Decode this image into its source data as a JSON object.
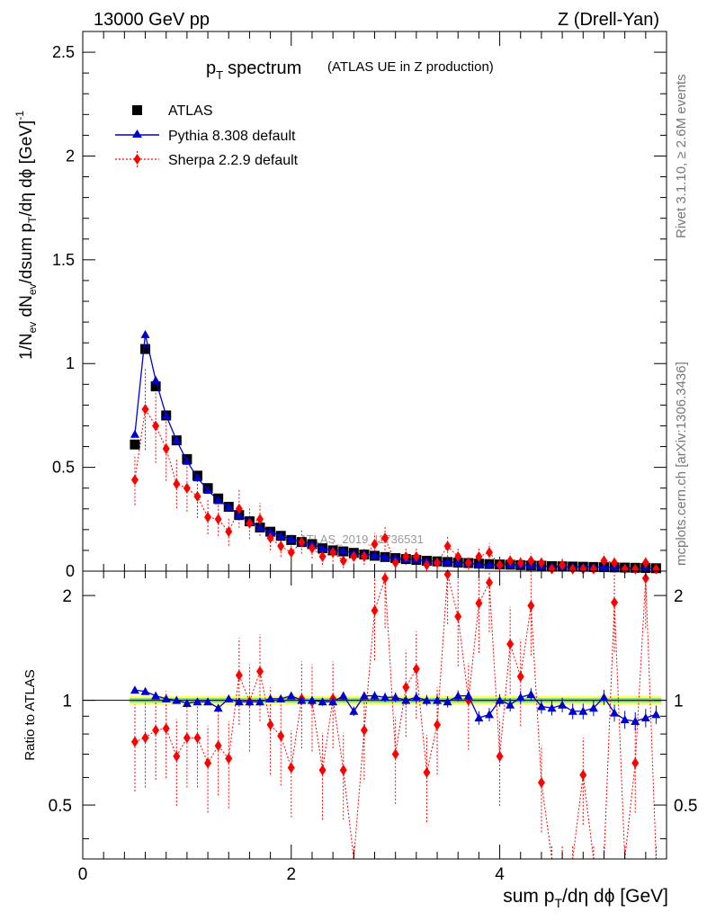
{
  "header": {
    "energy_label": "13000 GeV pp",
    "process_label": "Z (Drell-Yan)"
  },
  "side_labels": {
    "rivet": "Rivet 3.1.10, ≥ 2.6M events",
    "mcplots": "mcplots.cern.ch [arXiv:1306.3436]"
  },
  "watermark": "ATLAS_2019_I1736531",
  "colors": {
    "atlas": "#000000",
    "pythia": "#0000cc",
    "sherpa": "#ff0000",
    "band_inner": "#7fe07f",
    "band_outer": "#ffff66"
  },
  "chart_data": [
    {
      "type": "line",
      "title": "pT spectrum",
      "title_main": "p",
      "title_sub": "T",
      "title_rest": "spectrum",
      "subtitle": "(ATLAS UE in Z production)",
      "ylabel": "1/N_ev dN_ev/dsum p_T/dη dϕ [GeV]^-1",
      "ylabel_parts": [
        "1/N",
        "ev",
        " dN",
        "ev",
        "/dsum p",
        "T",
        "/dη dϕ  [GeV]",
        "-1"
      ],
      "xlim": [
        0,
        5.6
      ],
      "ylim": [
        0,
        2.6
      ],
      "yticks": [
        "0",
        "0.5",
        "1",
        "1.5",
        "2",
        "2.5"
      ],
      "yticks_values": [
        0,
        0.5,
        1,
        1.5,
        2,
        2.5
      ],
      "legend_position": "top-left",
      "legend": [
        "ATLAS",
        "Pythia 8.308 default",
        "Sherpa 2.2.9 default"
      ],
      "x": [
        0.5,
        0.6,
        0.7,
        0.8,
        0.9,
        1.0,
        1.1,
        1.2,
        1.3,
        1.4,
        1.5,
        1.6,
        1.7,
        1.8,
        1.9,
        2.0,
        2.1,
        2.2,
        2.3,
        2.4,
        2.5,
        2.6,
        2.7,
        2.8,
        2.9,
        3.0,
        3.1,
        3.2,
        3.3,
        3.4,
        3.5,
        3.6,
        3.7,
        3.8,
        3.9,
        4.0,
        4.1,
        4.2,
        4.3,
        4.4,
        4.5,
        4.6,
        4.7,
        4.8,
        4.9,
        5.0,
        5.1,
        5.2,
        5.3,
        5.4,
        5.5
      ],
      "series": [
        {
          "name": "ATLAS",
          "values": [
            0.61,
            1.07,
            0.89,
            0.75,
            0.63,
            0.54,
            0.46,
            0.4,
            0.35,
            0.31,
            0.27,
            0.24,
            0.21,
            0.19,
            0.17,
            0.15,
            0.14,
            0.13,
            0.11,
            0.1,
            0.095,
            0.088,
            0.08,
            0.074,
            0.068,
            0.063,
            0.058,
            0.054,
            0.05,
            0.047,
            0.044,
            0.041,
            0.039,
            0.036,
            0.034,
            0.032,
            0.031,
            0.029,
            0.027,
            0.026,
            0.024,
            0.023,
            0.022,
            0.021,
            0.02,
            0.019,
            0.018,
            0.017,
            0.016,
            0.015,
            0.014
          ]
        },
        {
          "name": "Pythia 8.308 default",
          "values": [
            0.66,
            1.14,
            0.92,
            0.75,
            0.63,
            0.53,
            0.45,
            0.39,
            0.34,
            0.31,
            0.27,
            0.24,
            0.21,
            0.19,
            0.17,
            0.155,
            0.14,
            0.13,
            0.11,
            0.1,
            0.098,
            0.085,
            0.082,
            0.076,
            0.069,
            0.064,
            0.058,
            0.055,
            0.05,
            0.047,
            0.044,
            0.042,
            0.04,
            0.032,
            0.031,
            0.032,
            0.03,
            0.029,
            0.028,
            0.025,
            0.023,
            0.022,
            0.021,
            0.02,
            0.019,
            0.019,
            0.017,
            0.016,
            0.014,
            0.014,
            0.013
          ]
        },
        {
          "name": "Sherpa 2.2.9 default",
          "values": [
            0.44,
            0.78,
            0.7,
            0.59,
            0.42,
            0.4,
            0.36,
            0.26,
            0.25,
            0.19,
            0.3,
            0.23,
            0.25,
            0.16,
            0.12,
            0.09,
            0.14,
            0.11,
            0.07,
            0.09,
            0.05,
            0.07,
            0.07,
            0.13,
            0.16,
            0.04,
            0.07,
            0.07,
            0.03,
            0.04,
            0.12,
            0.07,
            0.04,
            0.07,
            0.09,
            0.03,
            0.05,
            0.04,
            0.05,
            0.04,
            0.01,
            0.03,
            0.01,
            0.01,
            0.01,
            0.05,
            0.04,
            0.01,
            0.01,
            0.04,
            0.01
          ]
        }
      ]
    },
    {
      "type": "line",
      "title": "Ratio to ATLAS",
      "ylabel": "Ratio to ATLAS",
      "xlabel": "sum pT/dη dϕ [GeV]",
      "xlabel_parts": [
        "sum p",
        "T",
        "/dη dϕ [GeV]"
      ],
      "xlim": [
        0,
        5.6
      ],
      "ylim": [
        0.35,
        2.35
      ],
      "xticks": [
        "0",
        "2",
        "4"
      ],
      "xticks_values": [
        0,
        2,
        4
      ],
      "yticks": [
        "0.5",
        "1",
        "2"
      ],
      "yticks_values": [
        0.5,
        1,
        2
      ],
      "x": [
        0.5,
        0.6,
        0.7,
        0.8,
        0.9,
        1.0,
        1.1,
        1.2,
        1.3,
        1.4,
        1.5,
        1.6,
        1.7,
        1.8,
        1.9,
        2.0,
        2.1,
        2.2,
        2.3,
        2.4,
        2.5,
        2.6,
        2.7,
        2.8,
        2.9,
        3.0,
        3.1,
        3.2,
        3.3,
        3.4,
        3.5,
        3.6,
        3.7,
        3.8,
        3.9,
        4.0,
        4.1,
        4.2,
        4.3,
        4.4,
        4.5,
        4.6,
        4.7,
        4.8,
        4.9,
        5.0,
        5.1,
        5.2,
        5.3,
        5.4,
        5.5
      ],
      "series": [
        {
          "name": "Pythia 8.308 default",
          "values": [
            1.07,
            1.06,
            1.03,
            1.01,
            1.0,
            0.98,
            0.99,
            0.99,
            0.95,
            1.01,
            0.99,
            0.99,
            0.99,
            1.01,
            1.01,
            1.03,
            1.0,
            1.0,
            0.99,
            0.99,
            1.03,
            0.93,
            1.03,
            1.03,
            1.02,
            1.02,
            1.0,
            1.02,
            1.0,
            1.0,
            0.99,
            1.03,
            1.03,
            0.89,
            0.91,
            1.0,
            0.97,
            1.02,
            1.04,
            0.96,
            0.95,
            0.97,
            0.93,
            0.93,
            0.95,
            1.02,
            0.92,
            0.88,
            0.87,
            0.89,
            0.91
          ]
        },
        {
          "name": "Sherpa 2.2.9 default",
          "values": [
            0.76,
            0.78,
            0.82,
            0.83,
            0.69,
            0.78,
            0.78,
            0.66,
            0.74,
            0.68,
            1.18,
            0.99,
            1.21,
            0.85,
            0.79,
            0.64,
            1.01,
            0.99,
            0.63,
            1.01,
            0.63,
            0.3,
            0.82,
            1.81,
            2.24,
            0.7,
            1.09,
            1.23,
            0.62,
            0.85,
            2.3,
            1.74,
            1.0,
            1.9,
            2.18,
            0.69,
            1.45,
            1.17,
            1.87,
            0.58,
            0.3,
            0.3,
            0.3,
            0.61,
            0.3,
            0.3,
            1.91,
            0.3,
            0.66,
            2.24,
            0.3
          ]
        }
      ]
    }
  ]
}
